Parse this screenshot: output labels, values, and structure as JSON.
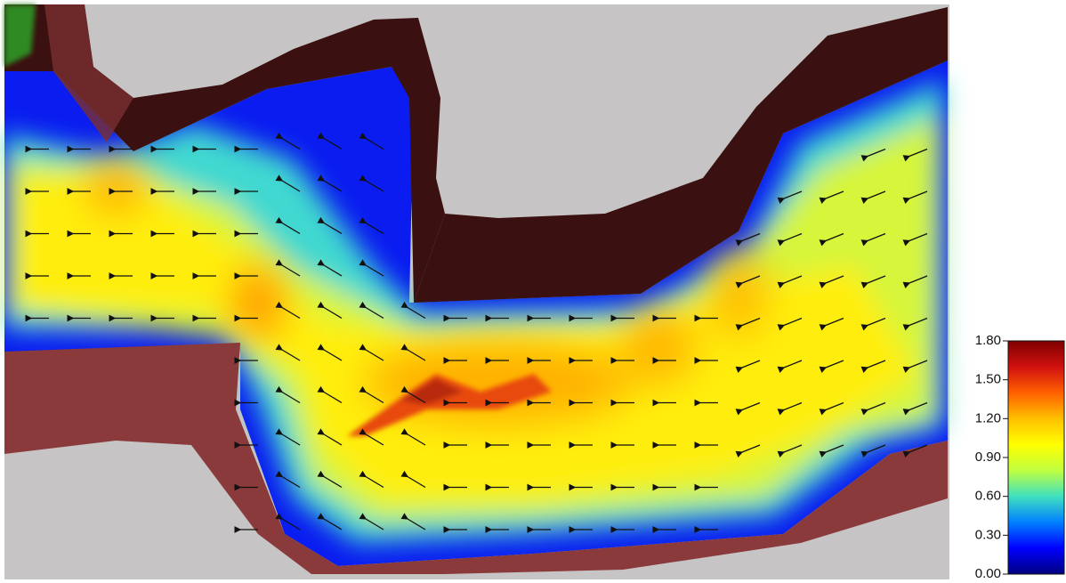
{
  "chart_data": {
    "type": "heatmap",
    "colorbar": {
      "lim": [
        0,
        1.8
      ],
      "ticks": [
        {
          "value": 0,
          "label": "0.00"
        },
        {
          "value": 0.3,
          "label": "0.30"
        },
        {
          "value": 0.6,
          "label": "0.60"
        },
        {
          "value": 0.9,
          "label": "0.90"
        },
        {
          "value": 1.2,
          "label": "1.20"
        },
        {
          "value": 1.5,
          "label": "1.50"
        },
        {
          "value": 1.8,
          "label": "1.80"
        }
      ],
      "colors": [
        "#00007f",
        "#0000ff",
        "#0080ff",
        "#40e0c0",
        "#c0ff40",
        "#ffff00",
        "#ffc000",
        "#ff6000",
        "#d01010",
        "#7f0000"
      ]
    }
  }
}
